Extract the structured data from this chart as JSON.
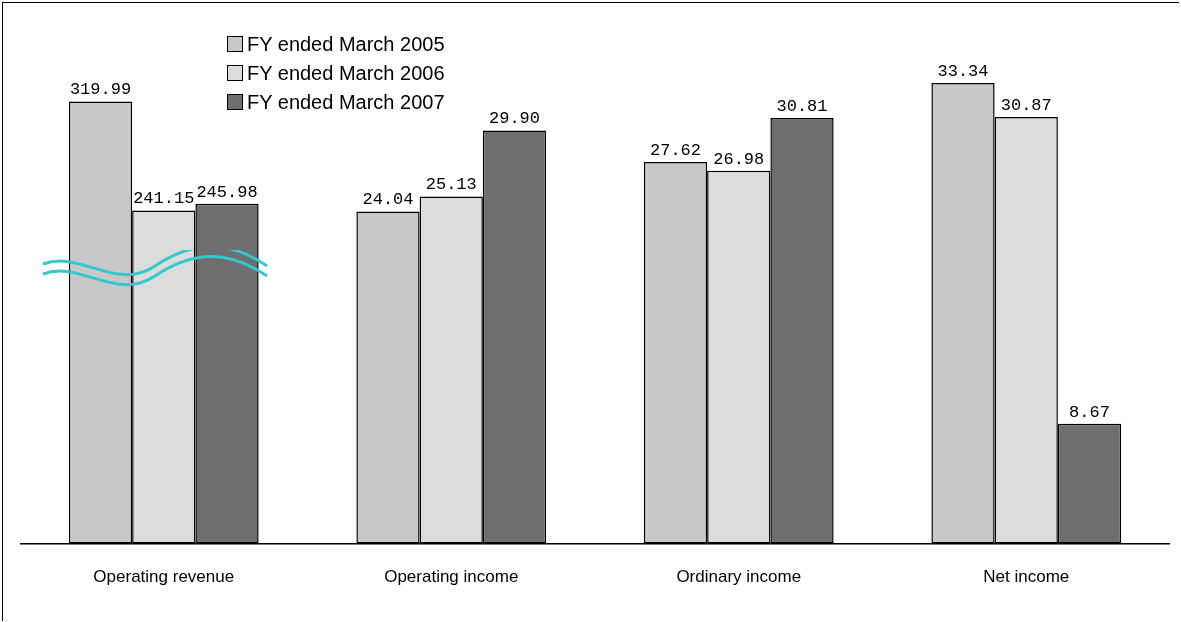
{
  "chart_data": {
    "type": "bar",
    "categories": [
      "Operating revenue",
      "Operating income",
      "Ordinary income",
      "Net income"
    ],
    "series": [
      {
        "name": "FY ended March 2005",
        "color": "#c8c8c8",
        "values": [
          null,
          24.04,
          27.62,
          33.34
        ],
        "value_labels": [
          null,
          "24.04",
          "27.62",
          "33.34"
        ]
      },
      {
        "name": "FY ended March 2006",
        "color": "#dcdcdc",
        "values": [
          null,
          25.13,
          26.98,
          30.87
        ],
        "value_labels": [
          null,
          "25.13",
          "26.98",
          "30.87"
        ]
      },
      {
        "name": "FY ended March 2007",
        "color": "#6e6e6e",
        "values": [
          null,
          29.9,
          30.81,
          8.67
        ],
        "value_labels": [
          null,
          "29.90",
          "30.81",
          "8.67"
        ]
      },
      {
        "color": "#c8c8c8",
        "axis": "y2",
        "values": [
          319.99,
          null,
          null,
          null
        ],
        "value_labels": [
          "319.99",
          null,
          null,
          null
        ]
      },
      {
        "color": "#dcdcdc",
        "axis": "y2",
        "values": [
          241.15,
          null,
          null,
          null
        ],
        "value_labels": [
          "241.15",
          null,
          null,
          null
        ]
      },
      {
        "color": "#6e6e6e",
        "axis": "y2",
        "values": [
          245.98,
          null,
          null,
          null
        ],
        "value_labels": [
          "245.98",
          null,
          null,
          null
        ]
      }
    ],
    "legend": "top left",
    "grid": false
  }
}
